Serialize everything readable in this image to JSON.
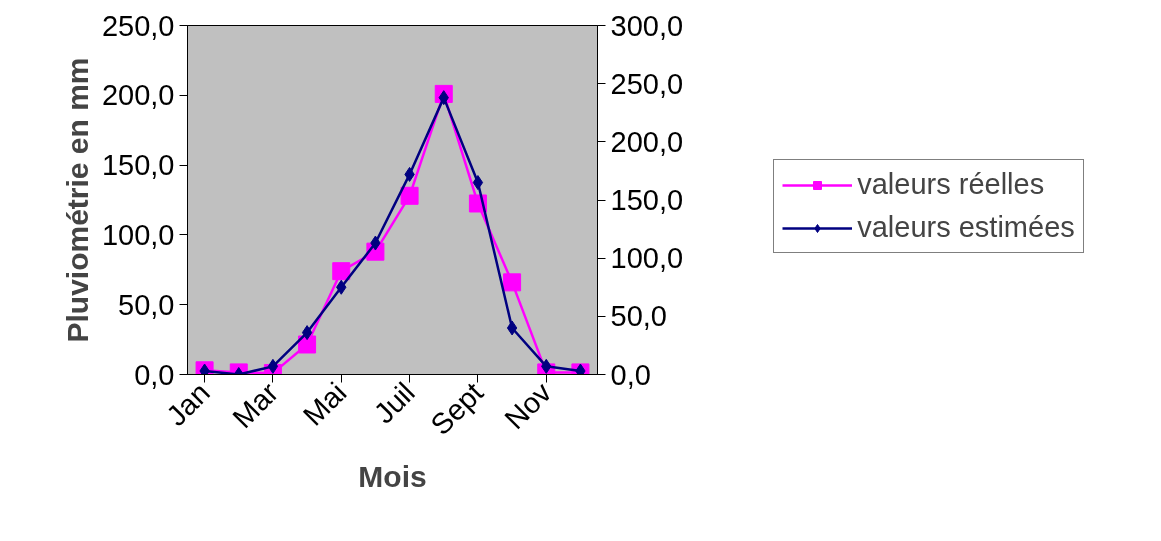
{
  "chart_data": {
    "type": "line",
    "xlabel": "Mois",
    "ylabel": "Pluviométrie en mm",
    "categories": [
      "Jan",
      null,
      "Mar",
      null,
      "Mai",
      null,
      "Juil",
      null,
      "Sept",
      null,
      "Nov",
      null
    ],
    "series": [
      {
        "name": "valeurs réelles",
        "color": "#ff00ff",
        "marker": "square",
        "values": [
          3,
          1.5,
          1,
          21.5,
          74,
          88,
          128,
          201,
          122.5,
          66,
          1.5,
          1.5
        ]
      },
      {
        "name": "valeurs estimées",
        "color": "#000080",
        "marker": "diamond",
        "axis": "y2",
        "values": [
          3,
          0,
          7,
          36,
          75,
          113,
          172,
          238,
          165,
          40,
          7,
          3
        ]
      }
    ],
    "ylim": [
      0,
      250
    ],
    "yticks": [
      {
        "value": 0,
        "label": "0,0"
      },
      {
        "value": 50,
        "label": "50,0"
      },
      {
        "value": 100,
        "label": "100,0"
      },
      {
        "value": 150,
        "label": "150,0"
      },
      {
        "value": 200,
        "label": "200,0"
      },
      {
        "value": 250,
        "label": "250,0"
      }
    ],
    "y2lim": [
      0,
      300
    ],
    "y2ticks": [
      {
        "value": 0,
        "label": "0,0"
      },
      {
        "value": 50,
        "label": "50,0"
      },
      {
        "value": 100,
        "label": "100,0"
      },
      {
        "value": 150,
        "label": "150,0"
      },
      {
        "value": 200,
        "label": "200,0"
      },
      {
        "value": 250,
        "label": "250,0"
      },
      {
        "value": 300,
        "label": "300,0"
      }
    ],
    "grid": false,
    "legend": "right"
  }
}
